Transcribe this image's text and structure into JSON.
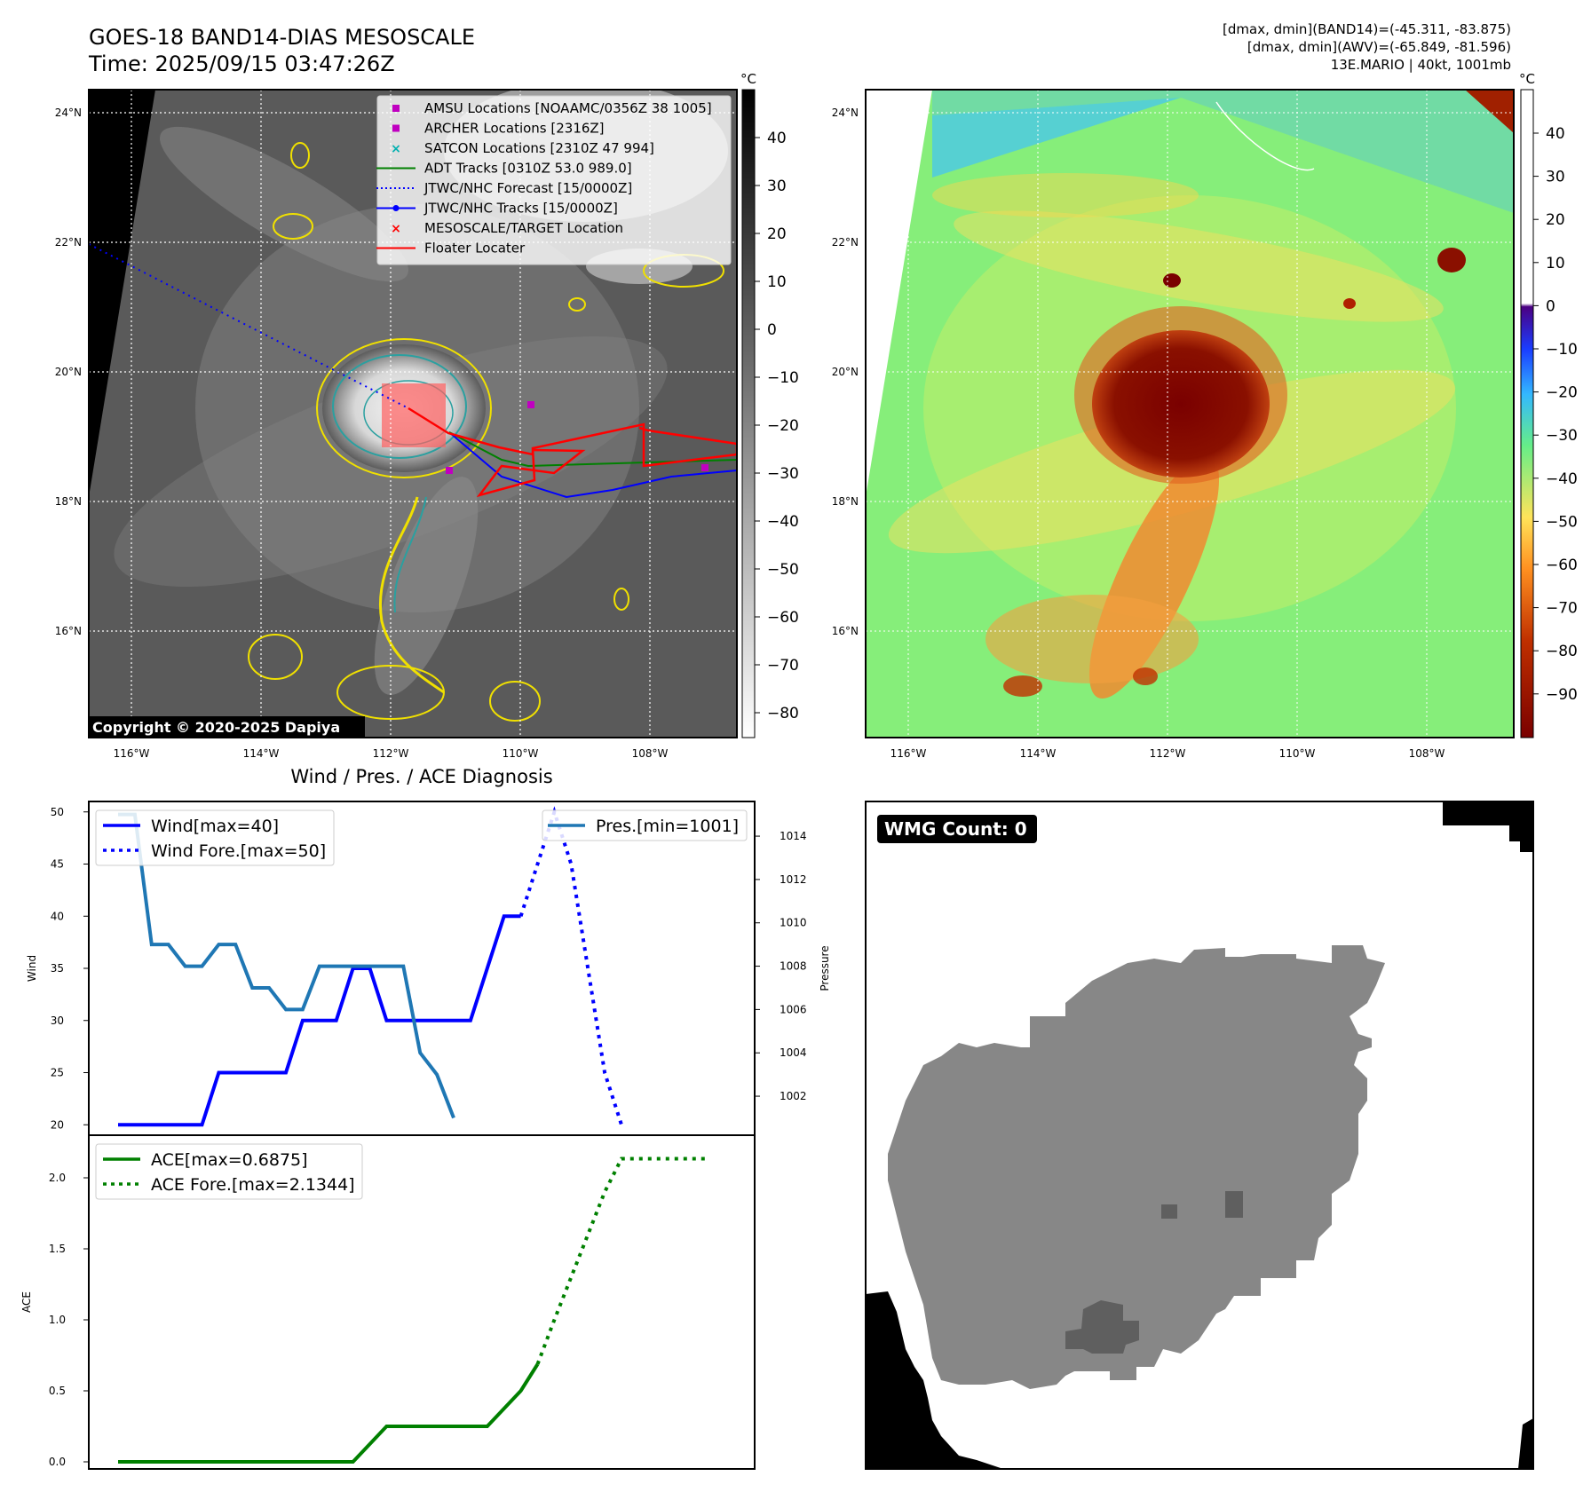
{
  "header": {
    "title": "GOES-18 BAND14-DIAS MESOSCALE",
    "time": "Time: 2025/09/15 03:47:26Z",
    "stats": [
      "[dmax, dmin](BAND14)=(-45.311, -83.875)",
      "[dmax, dmin](AWV)=(-65.849, -81.596)",
      "13E.MARIO | 40kt, 1001mb"
    ]
  },
  "ir_map": {
    "lat_ticks": [
      "24°N",
      "22°N",
      "20°N",
      "18°N",
      "16°N"
    ],
    "lon_ticks": [
      "116°W",
      "114°W",
      "112°W",
      "110°W",
      "108°W"
    ],
    "copyright": "Copyright © 2020-2025 Dapiya",
    "colorbar": {
      "unit": "°C",
      "ticks": [
        "40",
        "30",
        "20",
        "10",
        "0",
        "−10",
        "−20",
        "−30",
        "−40",
        "−50",
        "−60",
        "−70",
        "−80"
      ]
    },
    "legend": [
      {
        "label": "AMSU Locations [NOAAMC/0356Z 38 1005]",
        "marker": "square",
        "color": "#c000c0"
      },
      {
        "label": "ARCHER Locations [2316Z]",
        "marker": "square",
        "color": "#c000c0"
      },
      {
        "label": "SATCON Locations [2310Z 47 994]",
        "marker": "x",
        "color": "#00b0b0"
      },
      {
        "label": "ADT Tracks [0310Z 53.0 989.0]",
        "marker": "line",
        "color": "#008000"
      },
      {
        "label": "JTWC/NHC Forecast [15/0000Z]",
        "marker": "dotted",
        "color": "#0000ff"
      },
      {
        "label": "JTWC/NHC Tracks [15/0000Z]",
        "marker": "line-dot",
        "color": "#0000ff"
      },
      {
        "label": "MESOSCALE/TARGET Location",
        "marker": "x",
        "color": "#ff0000"
      },
      {
        "label": "Floater Locater",
        "marker": "line",
        "color": "#ff0000"
      }
    ]
  },
  "awv_map": {
    "lat_ticks": [
      "24°N",
      "22°N",
      "20°N",
      "18°N",
      "16°N"
    ],
    "lon_ticks": [
      "116°W",
      "114°W",
      "112°W",
      "110°W",
      "108°W"
    ],
    "colorbar": {
      "unit": "°C",
      "ticks": [
        "40",
        "30",
        "20",
        "10",
        "0",
        "−10",
        "−20",
        "−30",
        "−40",
        "−50",
        "−60",
        "−70",
        "−80",
        "−90"
      ]
    }
  },
  "wmg": {
    "label": "WMG Count: 0"
  },
  "chart_data": [
    {
      "type": "line",
      "title": "Wind / Pres. / ACE Diagnosis",
      "ylabel": "Wind",
      "y2label": "Pressure",
      "ylim": [
        19,
        51
      ],
      "y2lim": [
        1000.2,
        1015.6
      ],
      "yticks": [
        20,
        25,
        30,
        35,
        40,
        45,
        50
      ],
      "y2ticks": [
        1002,
        1004,
        1006,
        1008,
        1010,
        1012,
        1014
      ],
      "series": [
        {
          "name": "Wind[max=40]",
          "axis": "left",
          "style": "solid",
          "color": "#0000ff",
          "values": [
            20,
            20,
            20,
            20,
            20,
            20,
            25,
            25,
            25,
            25,
            25,
            30,
            30,
            30,
            35,
            35,
            30,
            30,
            30,
            30,
            30,
            30,
            35,
            40,
            40
          ]
        },
        {
          "name": "Wind Fore.[max=50]",
          "axis": "left",
          "style": "dotted",
          "color": "#0000ff",
          "values": [
            null,
            null,
            null,
            null,
            null,
            null,
            null,
            null,
            null,
            null,
            null,
            null,
            null,
            null,
            null,
            null,
            null,
            null,
            null,
            null,
            null,
            null,
            null,
            null,
            40,
            45,
            50,
            45,
            35,
            25,
            20
          ]
        },
        {
          "name": "Pres.[min=1001]",
          "axis": "right",
          "style": "solid",
          "color": "#1f77b4",
          "values": [
            1015,
            1015,
            1009,
            1009,
            1008,
            1008,
            1009,
            1009,
            1007,
            1007,
            1006,
            1006,
            1008,
            1008,
            1008,
            1008,
            1008,
            1008,
            1004,
            1003,
            1001
          ]
        }
      ]
    },
    {
      "type": "line",
      "ylabel": "ACE",
      "ylim": [
        -0.05,
        2.3
      ],
      "yticks": [
        0.0,
        0.5,
        1.0,
        1.5,
        2.0
      ],
      "series": [
        {
          "name": "ACE[max=0.6875]",
          "style": "solid",
          "color": "#008000",
          "values": [
            0,
            0,
            0,
            0,
            0,
            0,
            0,
            0,
            0,
            0,
            0,
            0,
            0,
            0,
            0,
            0.125,
            0.25,
            0.25,
            0.25,
            0.25,
            0.25,
            0.25,
            0.25,
            0.375,
            0.5,
            0.6875
          ]
        },
        {
          "name": "ACE Fore.[max=2.1344]",
          "style": "dotted",
          "color": "#008000",
          "values": [
            null,
            null,
            null,
            null,
            null,
            null,
            null,
            null,
            null,
            null,
            null,
            null,
            null,
            null,
            null,
            null,
            null,
            null,
            null,
            null,
            null,
            null,
            null,
            null,
            null,
            0.6875,
            1.0,
            1.3,
            1.6,
            1.9,
            2.1344,
            2.1344,
            2.1344,
            2.1344,
            2.1344,
            2.1344
          ]
        }
      ]
    }
  ]
}
